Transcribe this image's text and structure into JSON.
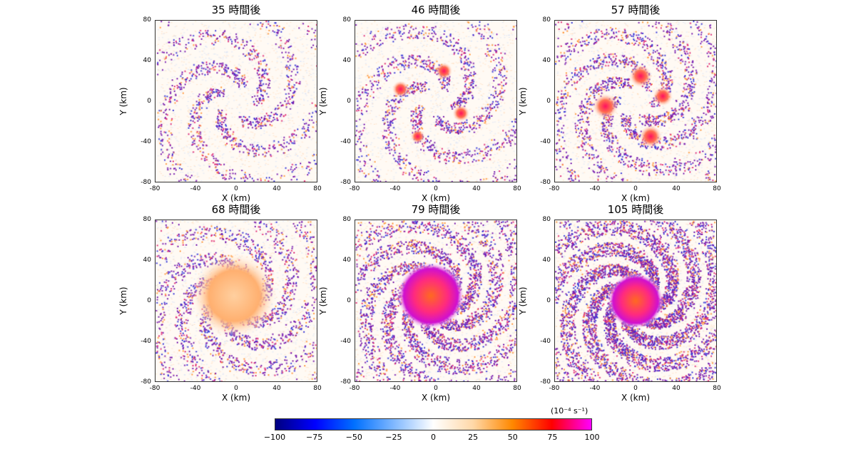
{
  "chart_data": {
    "type": "heatmap",
    "xlabel": "X (km)",
    "ylabel": "Y (km)",
    "xlim": [
      -80,
      80
    ],
    "ylim": [
      -80,
      80
    ],
    "xticks": [
      "-80",
      "-40",
      "0",
      "40",
      "80"
    ],
    "yticks": [
      "80",
      "40",
      "0",
      "-40",
      "-80"
    ],
    "panels": [
      {
        "title": "35 時間後",
        "hours": 35
      },
      {
        "title": "46 時間後",
        "hours": 46
      },
      {
        "title": "57 時間後",
        "hours": 57
      },
      {
        "title": "68 時間後",
        "hours": 68
      },
      {
        "title": "79 時間後",
        "hours": 79
      },
      {
        "title": "105 時間後",
        "hours": 105
      }
    ],
    "colorbar": {
      "unit": "(10⁻⁴ s⁻¹)",
      "range": [
        -100,
        100
      ],
      "ticks": [
        "−100",
        "−75",
        "−50",
        "−25",
        "0",
        "25",
        "50",
        "75",
        "100"
      ],
      "colors": [
        "#000080",
        "#0000ff",
        "#0070ff",
        "#ffffff",
        "#ff8800",
        "#ff0000",
        "#ff00ff"
      ]
    }
  }
}
